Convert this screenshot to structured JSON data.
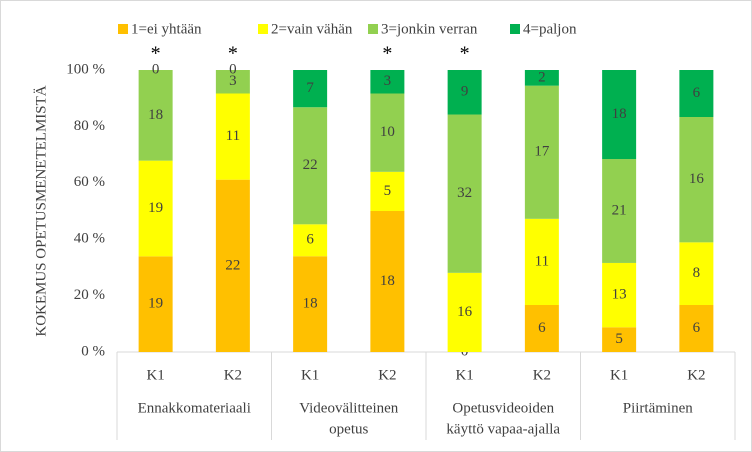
{
  "chart_data": {
    "type": "bar",
    "stacked_percent": true,
    "y_label": "KOKEMUS OPETUSMENETELMISTÄ",
    "categories": [
      "K1",
      "K2",
      "K1",
      "K2",
      "K1",
      "K2",
      "K1",
      "K2"
    ],
    "groups": [
      [
        "Ennakkomateriaali"
      ],
      [
        "Videovälitteinen",
        "opetus"
      ],
      [
        "Opetusvideoiden",
        "käyttö vapaa-ajalla"
      ],
      [
        "Piirtäminen"
      ]
    ],
    "annotations": [
      "*",
      "*",
      null,
      "*",
      "*",
      null,
      null,
      null
    ],
    "series": [
      {
        "name": "1=ei yhtään",
        "color": "#ffc000",
        "values": [
          19,
          22,
          18,
          18,
          0,
          6,
          5,
          6
        ]
      },
      {
        "name": "2=vain vähän",
        "color": "#ffff00",
        "values": [
          19,
          11,
          6,
          5,
          16,
          11,
          13,
          8
        ]
      },
      {
        "name": "3=jonkin verran",
        "color": "#92d050",
        "values": [
          18,
          3,
          22,
          10,
          32,
          17,
          21,
          16
        ]
      },
      {
        "name": "4=paljon",
        "color": "#00b050",
        "values": [
          0,
          0,
          7,
          3,
          9,
          2,
          18,
          6
        ]
      }
    ],
    "ylim": [
      0,
      100
    ],
    "yticks": [
      {
        "value": 0,
        "label": "0 %"
      },
      {
        "value": 20,
        "label": "20 %"
      },
      {
        "value": 40,
        "label": "40 %"
      },
      {
        "value": 60,
        "label": "60 %"
      },
      {
        "value": 80,
        "label": "80 %"
      },
      {
        "value": 100,
        "label": "100 %"
      }
    ],
    "grid": false
  }
}
